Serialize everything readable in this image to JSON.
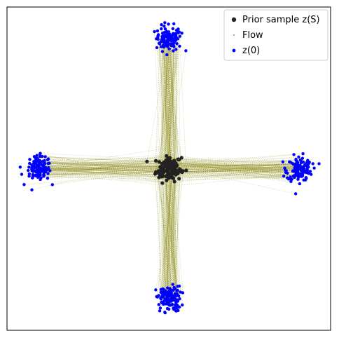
{
  "chart_data": {
    "type": "scatter",
    "title": "",
    "xlabel": "",
    "ylabel": "",
    "axes": {
      "ticks_visible": false,
      "grid": false,
      "xlim": [
        -1.55,
        1.55
      ],
      "ylim": [
        -1.55,
        1.55
      ]
    },
    "legend": {
      "placement": "top-right"
    },
    "series": [
      {
        "name": "Prior sample z(S)",
        "kind": "points",
        "color": "#222222",
        "center": [
          0.0,
          0.0
        ],
        "spread": 0.06,
        "count": 120
      },
      {
        "name": "Flow",
        "kind": "trajectories",
        "color": "#808000",
        "from_series": "Prior sample z(S)",
        "to_series": "z(0)"
      },
      {
        "name": "z(0)",
        "kind": "points",
        "color": "#0000ff",
        "clusters": [
          {
            "center": [
              0.0,
              1.25
            ],
            "spread": 0.06,
            "count": 120
          },
          {
            "center": [
              -1.25,
              0.0
            ],
            "spread": 0.06,
            "count": 120
          },
          {
            "center": [
              1.25,
              0.0
            ],
            "spread": 0.06,
            "count": 120
          },
          {
            "center": [
              0.0,
              -1.25
            ],
            "spread": 0.06,
            "count": 120
          }
        ]
      }
    ]
  }
}
